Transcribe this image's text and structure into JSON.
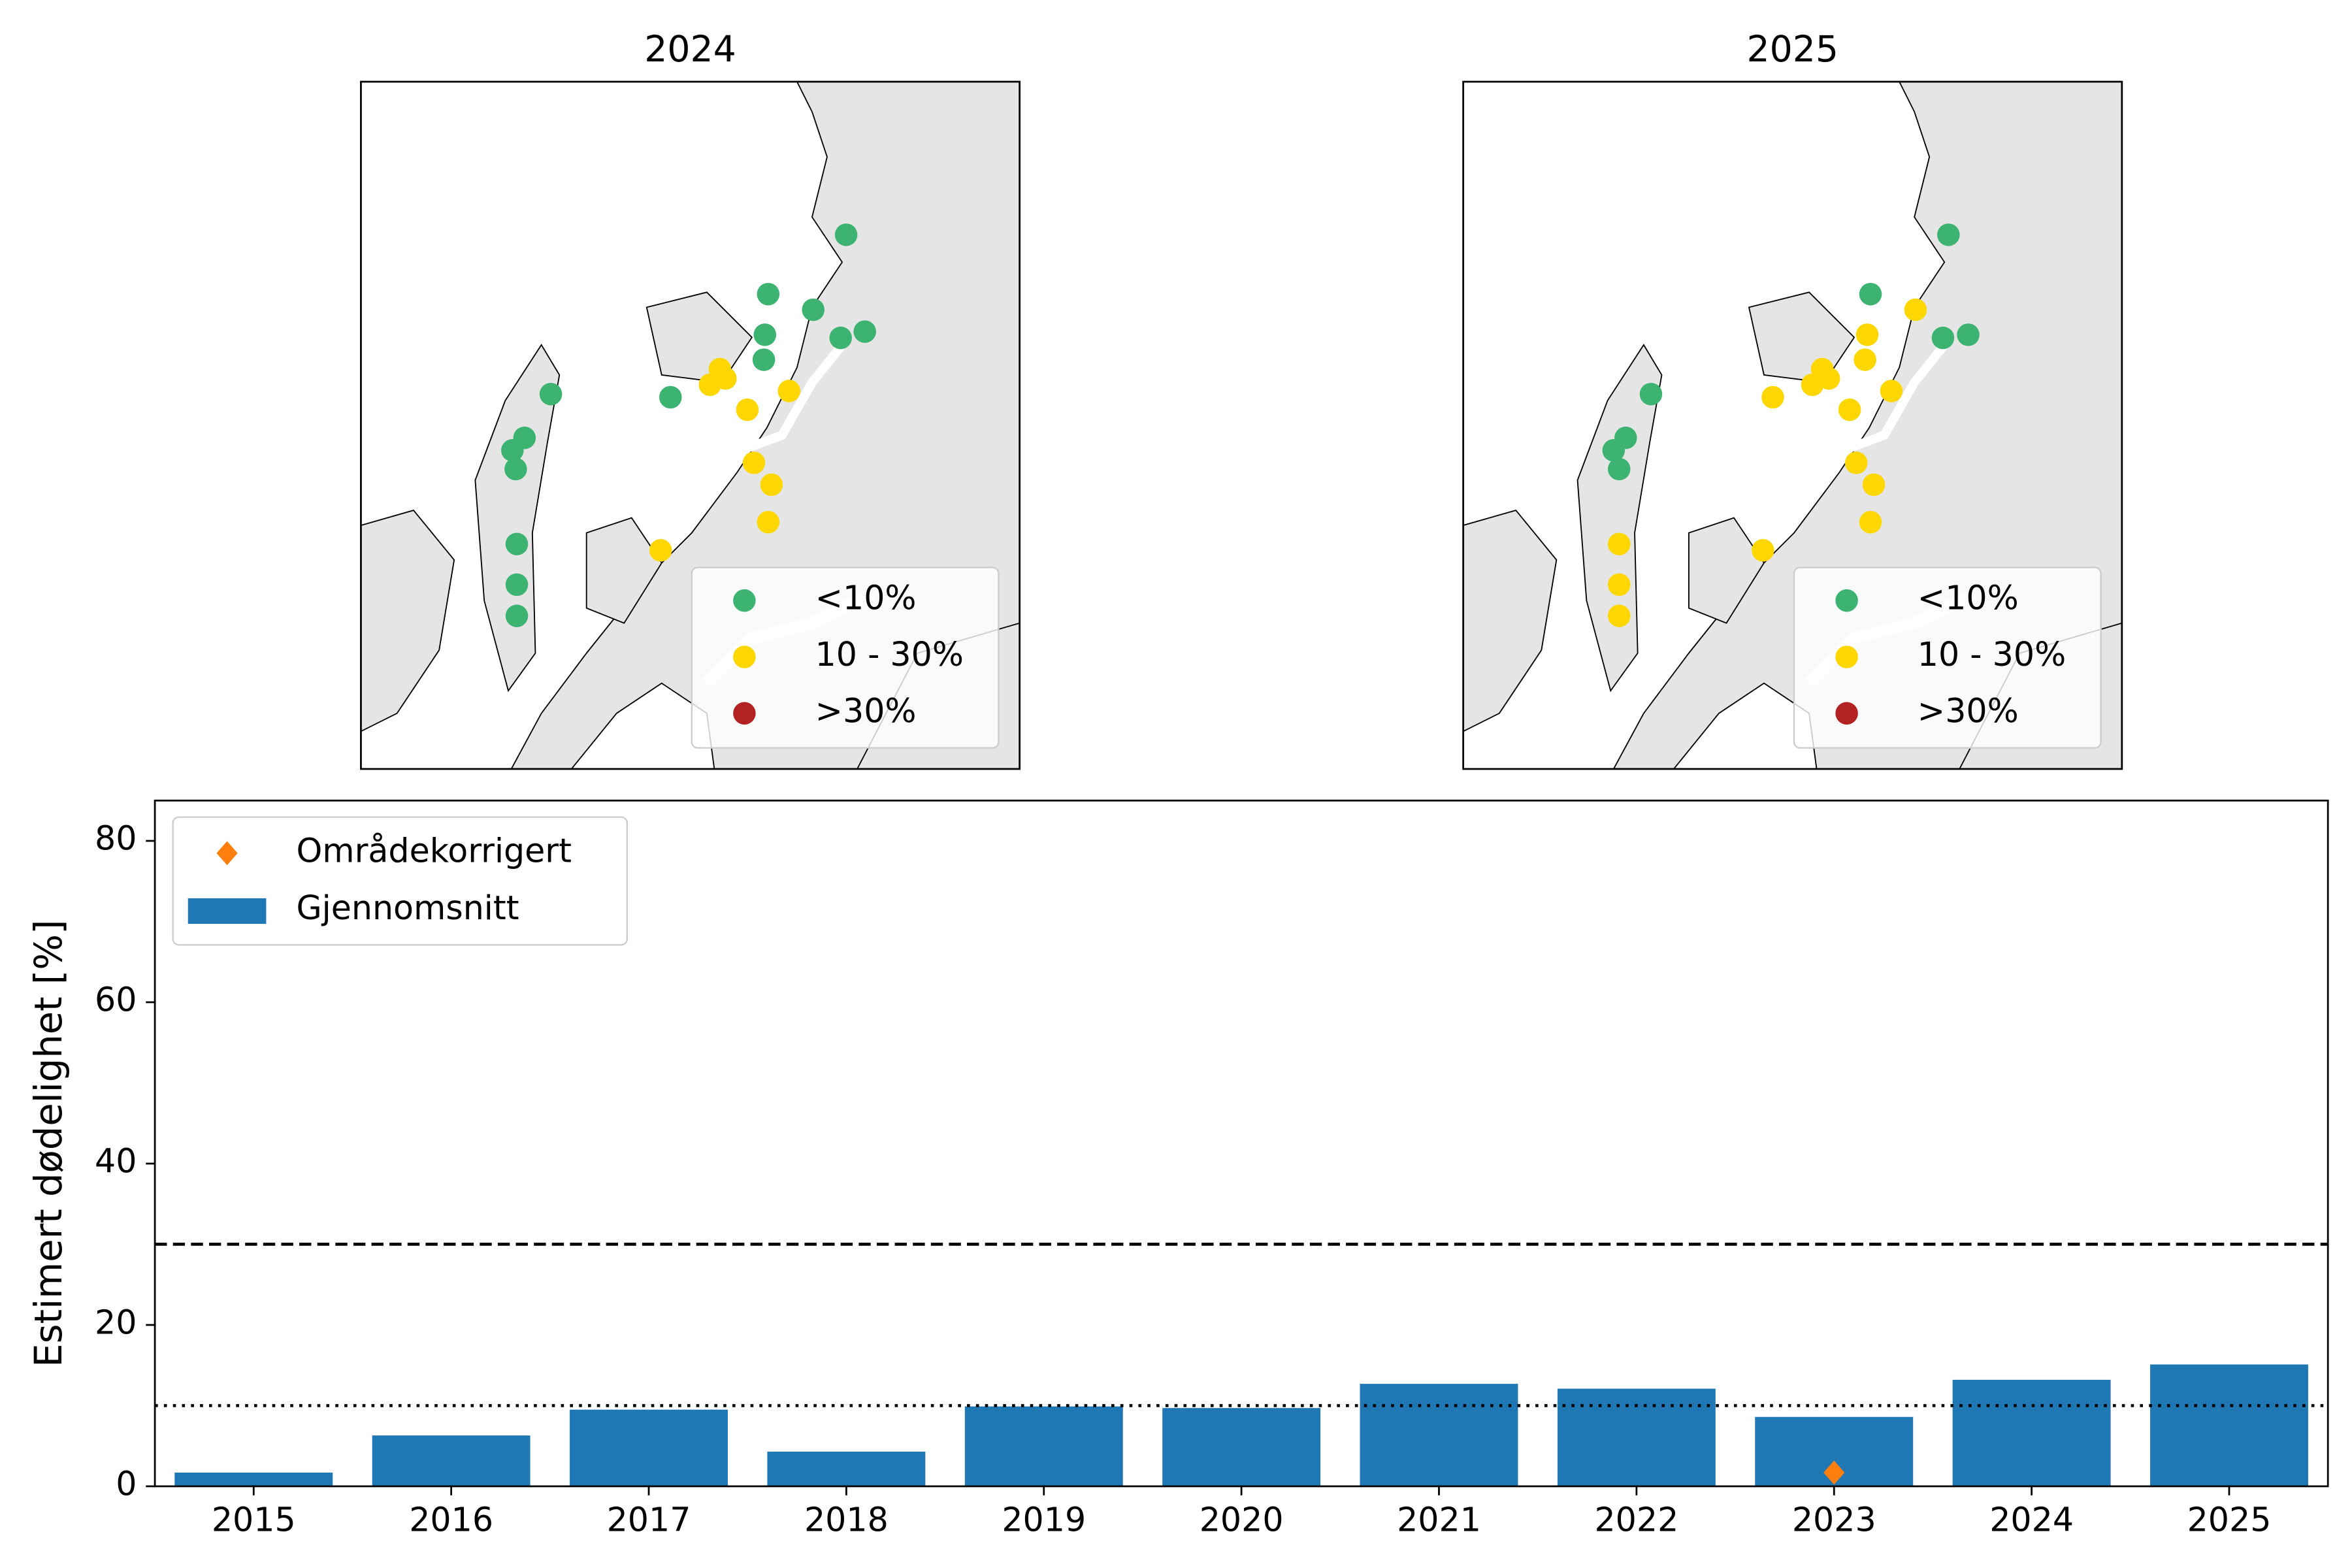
{
  "chart_data": [
    {
      "type": "map",
      "title": "2024",
      "xlim": [
        15,
        21
      ],
      "ylim": [
        68.3,
        70.5
      ],
      "legend": "lower right",
      "series": [
        {
          "name": "<10%",
          "color": "#3cb371",
          "x": [
            19.42,
            18.71,
            19.12,
            18.68,
            19.37,
            19.59,
            18.67,
            16.73,
            17.82,
            16.49,
            16.38,
            16.41,
            16.42,
            16.42,
            16.42
          ],
          "values": [
            70.01,
            69.82,
            69.77,
            69.69,
            69.68,
            69.7,
            69.61,
            69.5,
            69.49,
            69.36,
            69.32,
            69.26,
            69.02,
            68.89,
            68.79
          ]
        },
        {
          "name": "10 - 30%",
          "color": "#ffd700",
          "x": [
            18.27,
            18.32,
            18.18,
            18.9,
            18.52,
            18.58,
            18.74,
            18.71,
            17.73
          ],
          "values": [
            69.58,
            69.55,
            69.53,
            69.51,
            69.45,
            69.28,
            69.21,
            69.09,
            69.0
          ]
        },
        {
          "name": ">30%",
          "color": "#b22222",
          "x": [],
          "values": []
        }
      ]
    },
    {
      "type": "map",
      "title": "2025",
      "xlim": [
        15,
        21
      ],
      "ylim": [
        68.3,
        70.5
      ],
      "legend": "lower right",
      "series": [
        {
          "name": "<10%",
          "color": "#3cb371",
          "x": [
            19.42,
            18.71,
            19.37,
            19.6,
            16.71,
            16.48,
            16.37,
            16.42
          ],
          "values": [
            70.01,
            69.82,
            69.68,
            69.69,
            69.5,
            69.36,
            69.32,
            69.26
          ]
        },
        {
          "name": "10 - 30%",
          "color": "#ffd700",
          "x": [
            19.12,
            18.68,
            18.66,
            18.27,
            18.33,
            18.18,
            17.82,
            18.9,
            18.52,
            18.58,
            18.74,
            18.71,
            17.73,
            16.42,
            16.42,
            16.42
          ],
          "values": [
            69.77,
            69.69,
            69.61,
            69.58,
            69.55,
            69.53,
            69.49,
            69.51,
            69.45,
            69.28,
            69.21,
            69.09,
            69.0,
            69.02,
            68.89,
            68.79
          ]
        },
        {
          "name": ">30%",
          "color": "#b22222",
          "x": [],
          "values": []
        }
      ]
    },
    {
      "type": "bar",
      "y_label": "Estimert dødelighet [%]",
      "categories": [
        "2015",
        "2016",
        "2017",
        "2018",
        "2019",
        "2020",
        "2021",
        "2022",
        "2023",
        "2024",
        "2025"
      ],
      "ylim": [
        0,
        85
      ],
      "yticks": [
        0,
        20,
        40,
        60,
        80
      ],
      "legend": "upper left",
      "hlines": [
        {
          "value": 30,
          "style": "dashed"
        },
        {
          "value": 10,
          "style": "dotted"
        }
      ],
      "series": [
        {
          "name": "Områdekorrigert",
          "kind": "marker",
          "color": "#ff7f0e",
          "values": [
            null,
            null,
            null,
            null,
            null,
            null,
            null,
            null,
            1.7,
            null,
            null
          ]
        },
        {
          "name": "Gjennomsnitt",
          "kind": "bar",
          "color": "#1f77b4",
          "values": [
            1.7,
            6.3,
            9.5,
            4.3,
            9.9,
            9.7,
            12.7,
            12.1,
            8.6,
            13.2,
            15.1
          ]
        }
      ]
    }
  ]
}
